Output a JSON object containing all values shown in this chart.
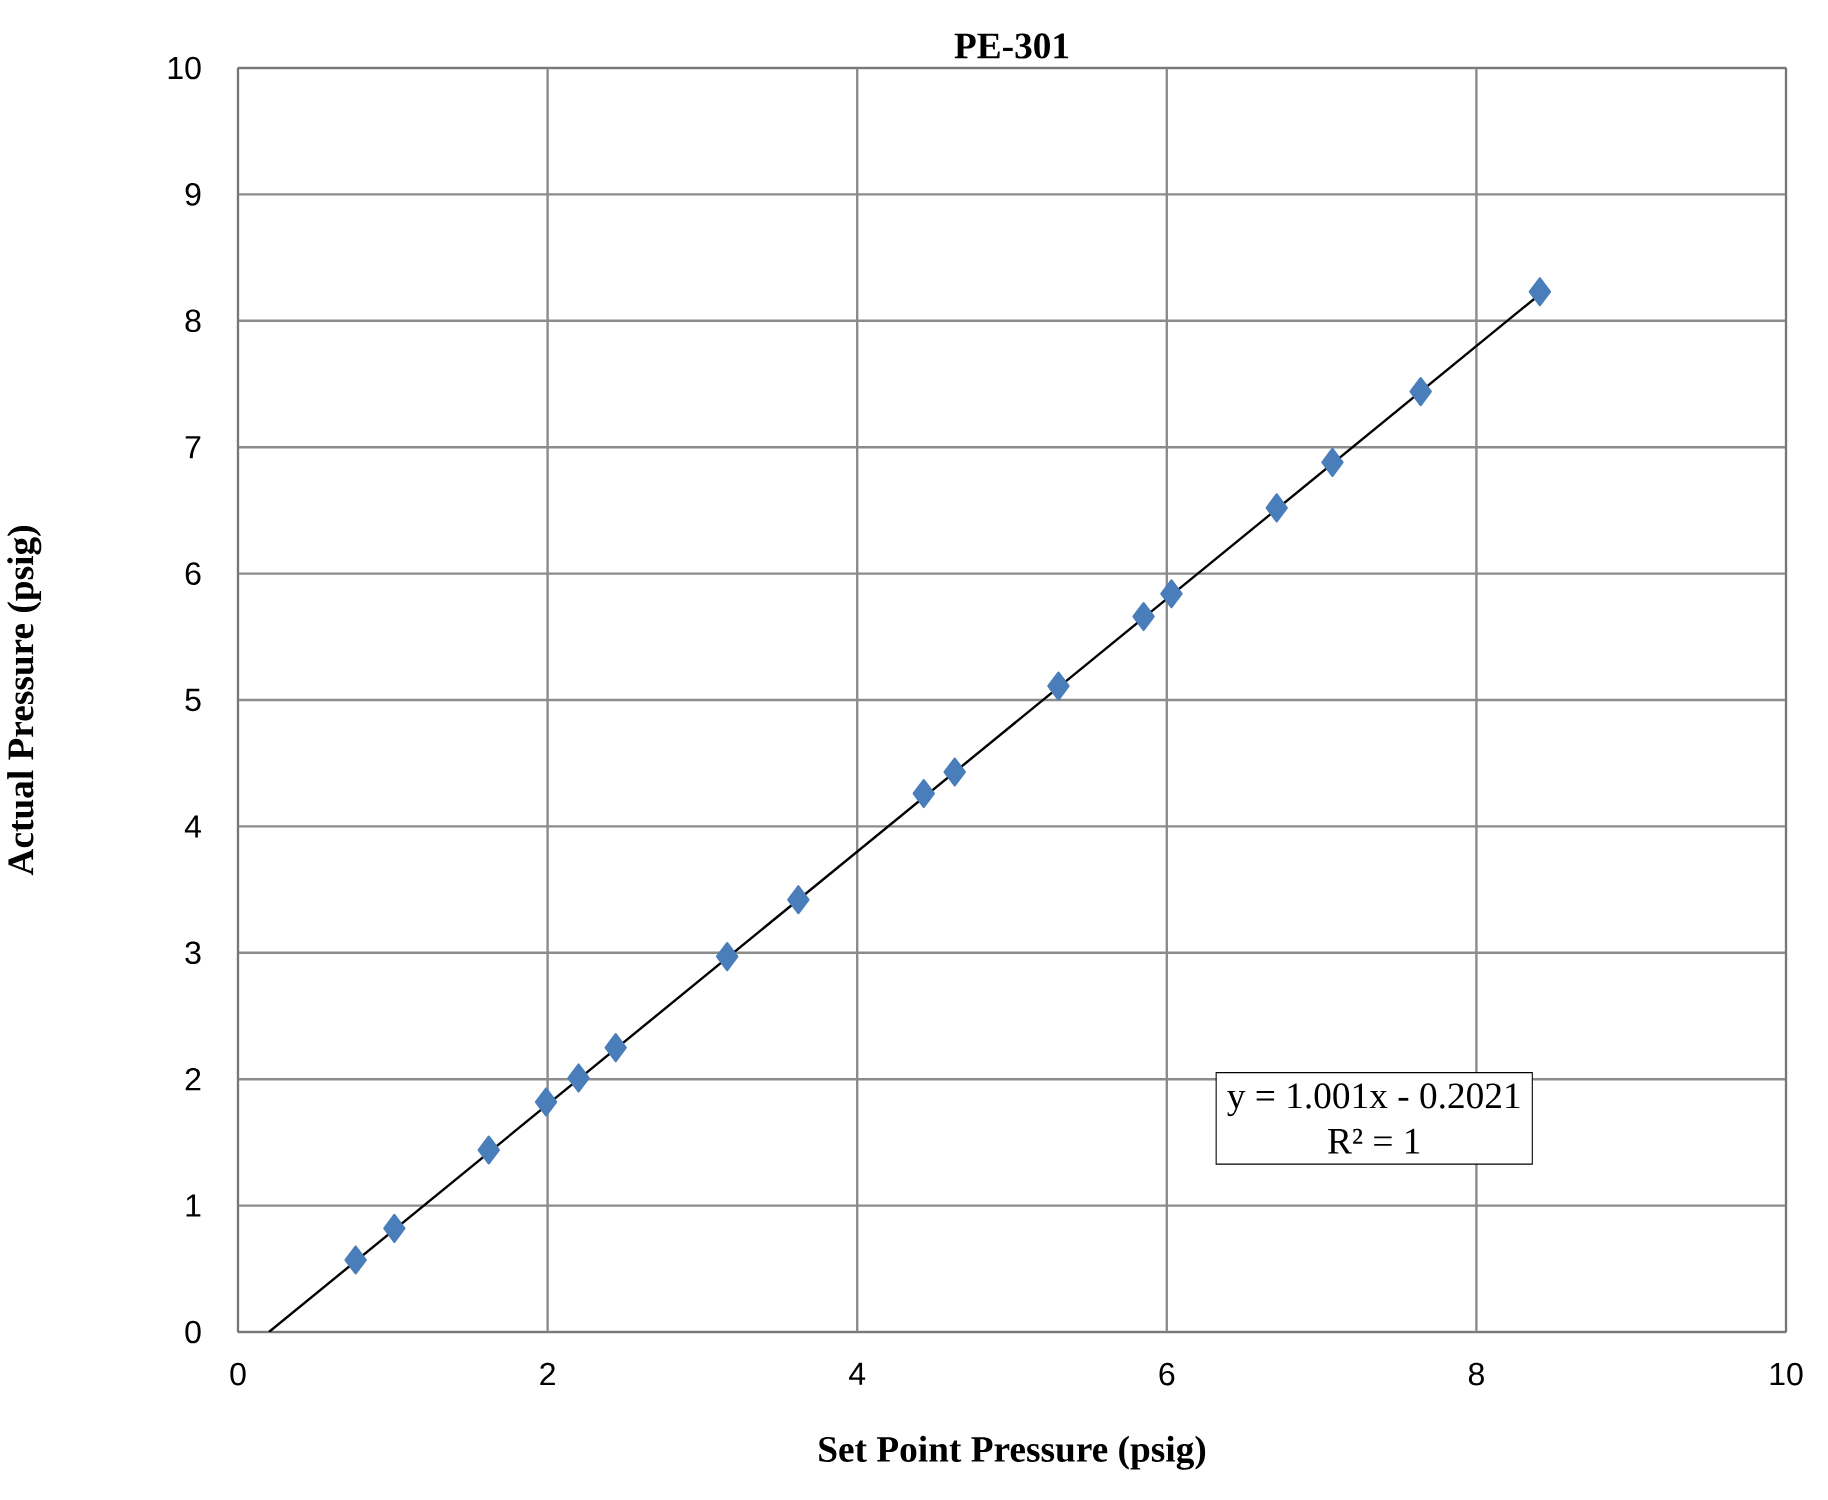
{
  "chart_data": {
    "type": "scatter",
    "title": "PE-301",
    "xlabel": "Set Point Pressure (psig)",
    "ylabel": "Actual Pressure (psig)",
    "xlim": [
      0,
      10
    ],
    "ylim": [
      0,
      10
    ],
    "xticks": [
      0,
      2,
      4,
      6,
      8,
      10
    ],
    "yticks": [
      0,
      1,
      2,
      3,
      4,
      5,
      6,
      7,
      8,
      9,
      10
    ],
    "grid": true,
    "marker": "diamond",
    "series": [
      {
        "color": "#4a7ebb",
        "x": [
          0.76,
          1.01,
          1.62,
          1.99,
          2.2,
          2.44,
          3.16,
          3.62,
          4.43,
          4.63,
          5.3,
          5.85,
          6.03,
          6.71,
          7.07,
          7.64,
          8.41
        ],
        "values": [
          0.57,
          0.82,
          1.44,
          1.82,
          2.01,
          2.25,
          2.97,
          3.42,
          4.26,
          4.43,
          5.11,
          5.66,
          5.84,
          6.52,
          6.88,
          7.44,
          8.23
        ]
      },
      {
        "type": "line",
        "color": "#000000",
        "marker": "none",
        "x": [
          0.2,
          8.43
        ],
        "values": [
          0,
          8.23
        ]
      }
    ],
    "annotations": [
      "y = 1.001x - 0.2021",
      "R² = 1"
    ]
  }
}
